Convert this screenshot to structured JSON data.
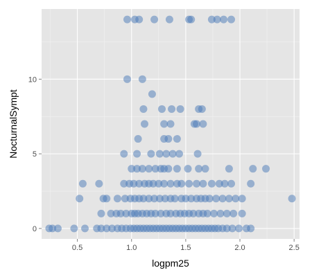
{
  "chart_data": {
    "type": "scatter",
    "title": "",
    "xlabel": "logpm25",
    "ylabel": "NocturnalSympt",
    "xlim": [
      0.17,
      2.55
    ],
    "ylim": [
      -0.7,
      14.7
    ],
    "x_ticks": [
      0.5,
      1.0,
      1.5,
      2.0,
      2.5
    ],
    "x_tick_labels": [
      "0.5",
      "1.0",
      "1.5",
      "2.0",
      "2.5"
    ],
    "y_ticks": [
      0,
      5,
      10
    ],
    "y_tick_labels": [
      "0",
      "5",
      "10"
    ],
    "grid": true,
    "legend": "none",
    "point_color": "#4a7ab8",
    "panel_color": "#e5e5e5",
    "series": [
      {
        "points": [
          [
            0.96,
            14
          ],
          [
            1.03,
            14
          ],
          [
            1.07,
            14
          ],
          [
            1.21,
            14
          ],
          [
            1.35,
            14
          ],
          [
            1.53,
            14
          ],
          [
            1.55,
            14
          ],
          [
            1.74,
            14
          ],
          [
            1.79,
            14
          ],
          [
            1.85,
            14
          ],
          [
            1.92,
            14
          ],
          [
            0.96,
            10
          ],
          [
            1.1,
            10
          ],
          [
            1.19,
            9
          ],
          [
            1.11,
            8
          ],
          [
            1.28,
            8
          ],
          [
            1.37,
            8
          ],
          [
            1.45,
            8
          ],
          [
            1.62,
            8
          ],
          [
            1.65,
            8
          ],
          [
            1.12,
            7
          ],
          [
            1.3,
            7
          ],
          [
            1.36,
            7
          ],
          [
            1.58,
            7
          ],
          [
            1.6,
            7
          ],
          [
            1.66,
            7
          ],
          [
            1.06,
            6
          ],
          [
            1.3,
            6
          ],
          [
            1.34,
            6
          ],
          [
            1.42,
            6
          ],
          [
            0.93,
            5
          ],
          [
            1.05,
            5
          ],
          [
            1.18,
            5
          ],
          [
            1.26,
            5
          ],
          [
            1.32,
            5
          ],
          [
            1.38,
            5
          ],
          [
            1.44,
            5
          ],
          [
            1.61,
            5
          ],
          [
            1.0,
            4
          ],
          [
            1.05,
            4
          ],
          [
            1.1,
            4
          ],
          [
            1.16,
            4
          ],
          [
            1.22,
            4
          ],
          [
            1.27,
            4
          ],
          [
            1.3,
            4
          ],
          [
            1.34,
            4
          ],
          [
            1.42,
            4
          ],
          [
            1.52,
            4
          ],
          [
            1.62,
            4
          ],
          [
            1.68,
            4
          ],
          [
            1.9,
            4
          ],
          [
            2.12,
            4
          ],
          [
            2.24,
            4
          ],
          [
            0.55,
            3
          ],
          [
            0.7,
            3
          ],
          [
            0.93,
            3
          ],
          [
            0.98,
            3
          ],
          [
            1.02,
            3
          ],
          [
            1.07,
            3
          ],
          [
            1.12,
            3
          ],
          [
            1.16,
            3
          ],
          [
            1.2,
            3
          ],
          [
            1.25,
            3
          ],
          [
            1.3,
            3
          ],
          [
            1.36,
            3
          ],
          [
            1.42,
            3
          ],
          [
            1.46,
            3
          ],
          [
            1.53,
            3
          ],
          [
            1.6,
            3
          ],
          [
            1.66,
            3
          ],
          [
            1.74,
            3
          ],
          [
            1.81,
            3
          ],
          [
            1.86,
            3
          ],
          [
            1.92,
            3
          ],
          [
            2.1,
            3
          ],
          [
            0.52,
            2
          ],
          [
            0.74,
            2
          ],
          [
            0.77,
            2
          ],
          [
            0.87,
            2
          ],
          [
            0.94,
            2
          ],
          [
            0.99,
            2
          ],
          [
            1.03,
            2
          ],
          [
            1.07,
            2
          ],
          [
            1.11,
            2
          ],
          [
            1.16,
            2
          ],
          [
            1.21,
            2
          ],
          [
            1.26,
            2
          ],
          [
            1.31,
            2
          ],
          [
            1.36,
            2
          ],
          [
            1.4,
            2
          ],
          [
            1.46,
            2
          ],
          [
            1.5,
            2
          ],
          [
            1.55,
            2
          ],
          [
            1.6,
            2
          ],
          [
            1.64,
            2
          ],
          [
            1.68,
            2
          ],
          [
            1.72,
            2
          ],
          [
            1.78,
            2
          ],
          [
            1.84,
            2
          ],
          [
            1.9,
            2
          ],
          [
            1.96,
            2
          ],
          [
            2.02,
            2
          ],
          [
            2.48,
            2
          ],
          [
            0.72,
            1
          ],
          [
            0.81,
            1
          ],
          [
            0.86,
            1
          ],
          [
            0.9,
            1
          ],
          [
            0.95,
            1
          ],
          [
            1.0,
            1
          ],
          [
            1.03,
            1
          ],
          [
            1.06,
            1
          ],
          [
            1.1,
            1
          ],
          [
            1.14,
            1
          ],
          [
            1.18,
            1
          ],
          [
            1.22,
            1
          ],
          [
            1.27,
            1
          ],
          [
            1.32,
            1
          ],
          [
            1.36,
            1
          ],
          [
            1.41,
            1
          ],
          [
            1.45,
            1
          ],
          [
            1.49,
            1
          ],
          [
            1.53,
            1
          ],
          [
            1.57,
            1
          ],
          [
            1.62,
            1
          ],
          [
            1.66,
            1
          ],
          [
            1.7,
            1
          ],
          [
            1.76,
            1
          ],
          [
            1.82,
            1
          ],
          [
            1.88,
            1
          ],
          [
            1.94,
            1
          ],
          [
            2.02,
            1
          ],
          [
            0.24,
            0
          ],
          [
            0.27,
            0
          ],
          [
            0.32,
            0
          ],
          [
            0.47,
            0
          ],
          [
            0.57,
            0
          ],
          [
            0.68,
            0
          ],
          [
            0.72,
            0
          ],
          [
            0.77,
            0
          ],
          [
            0.82,
            0
          ],
          [
            0.87,
            0
          ],
          [
            0.91,
            0
          ],
          [
            0.95,
            0
          ],
          [
            0.99,
            0
          ],
          [
            1.02,
            0
          ],
          [
            1.05,
            0
          ],
          [
            1.08,
            0
          ],
          [
            1.11,
            0
          ],
          [
            1.14,
            0
          ],
          [
            1.17,
            0
          ],
          [
            1.2,
            0
          ],
          [
            1.23,
            0
          ],
          [
            1.26,
            0
          ],
          [
            1.29,
            0
          ],
          [
            1.32,
            0
          ],
          [
            1.35,
            0
          ],
          [
            1.38,
            0
          ],
          [
            1.41,
            0
          ],
          [
            1.44,
            0
          ],
          [
            1.47,
            0
          ],
          [
            1.5,
            0
          ],
          [
            1.53,
            0
          ],
          [
            1.56,
            0
          ],
          [
            1.59,
            0
          ],
          [
            1.62,
            0
          ],
          [
            1.65,
            0
          ],
          [
            1.68,
            0
          ],
          [
            1.71,
            0
          ],
          [
            1.74,
            0
          ],
          [
            1.77,
            0
          ],
          [
            1.8,
            0
          ],
          [
            1.84,
            0
          ],
          [
            1.88,
            0
          ],
          [
            1.93,
            0
          ],
          [
            1.99,
            0
          ],
          [
            2.06,
            0
          ],
          [
            2.1,
            0
          ]
        ]
      }
    ]
  }
}
